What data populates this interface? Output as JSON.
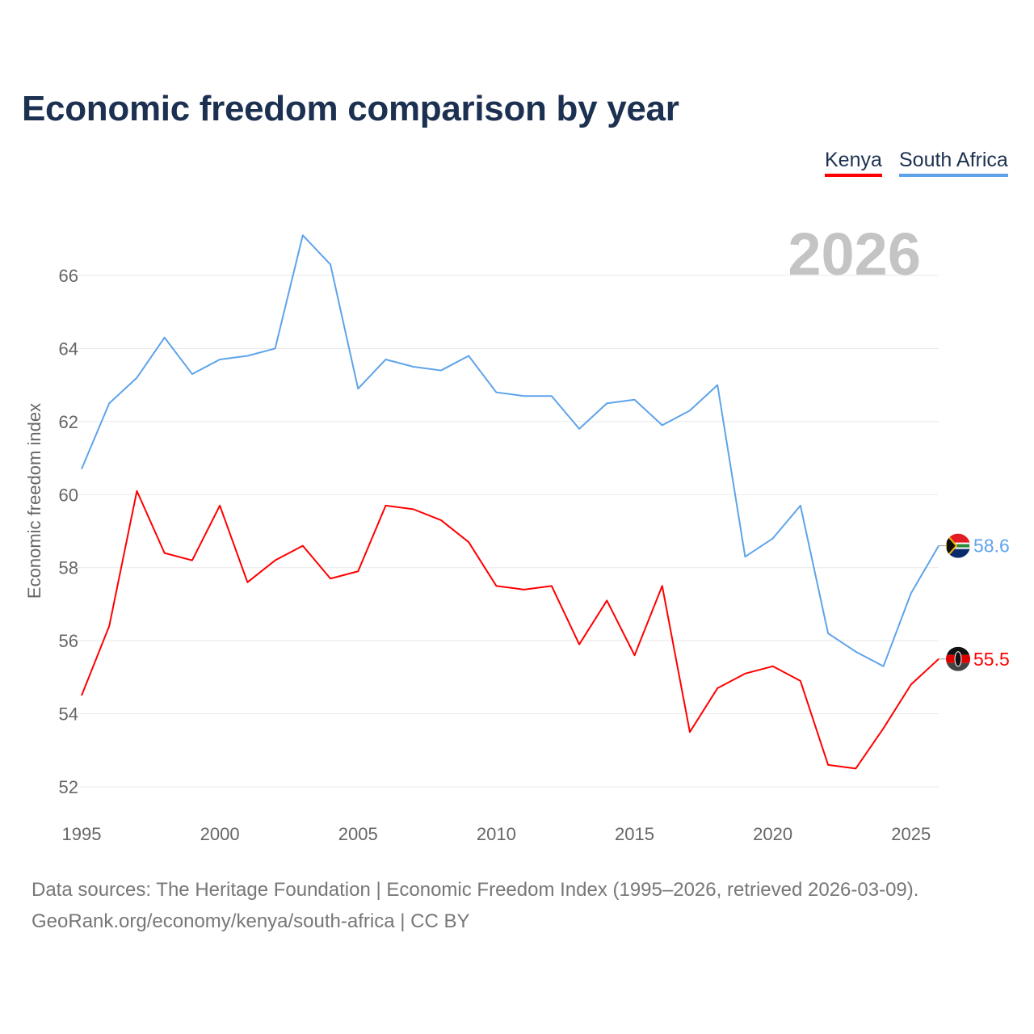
{
  "chart_data": {
    "type": "line",
    "title": "Economic freedom comparison by year",
    "xlabel": "",
    "ylabel": "Economic freedom index",
    "ylim": [
      52,
      66
    ],
    "xlim": [
      1995,
      2026
    ],
    "yticks": [
      "52",
      "54",
      "56",
      "58",
      "60",
      "62",
      "64",
      "66"
    ],
    "xticks": [
      "1995",
      "2000",
      "2005",
      "2010",
      "2015",
      "2020",
      "2025"
    ],
    "grid": true,
    "legend_position": "top-right",
    "watermark_year": "2026",
    "x": [
      1995,
      1996,
      1997,
      1998,
      1999,
      2000,
      2001,
      2002,
      2003,
      2004,
      2005,
      2006,
      2007,
      2008,
      2009,
      2010,
      2011,
      2012,
      2013,
      2014,
      2015,
      2016,
      2017,
      2018,
      2019,
      2020,
      2021,
      2022,
      2023,
      2024,
      2025,
      2026
    ],
    "series": [
      {
        "name": "Kenya",
        "color": "#ff0000",
        "end_label": "55.5",
        "values": [
          54.5,
          56.4,
          60.1,
          58.4,
          58.2,
          59.7,
          57.6,
          58.2,
          58.6,
          57.7,
          57.9,
          59.7,
          59.6,
          59.3,
          58.7,
          57.5,
          57.4,
          57.5,
          55.9,
          57.1,
          55.6,
          57.5,
          53.5,
          54.7,
          55.1,
          55.3,
          54.9,
          52.6,
          52.5,
          53.6,
          54.8,
          55.5
        ]
      },
      {
        "name": "South Africa",
        "color": "#5ea3ea",
        "end_label": "58.6",
        "values": [
          60.7,
          62.5,
          63.2,
          64.3,
          63.3,
          63.7,
          63.8,
          64.0,
          67.1,
          66.3,
          62.9,
          63.7,
          63.5,
          63.4,
          63.8,
          62.8,
          62.7,
          62.7,
          61.8,
          62.5,
          62.6,
          61.9,
          62.3,
          63.0,
          58.3,
          58.8,
          59.7,
          56.2,
          55.7,
          55.3,
          57.3,
          58.6
        ]
      }
    ]
  },
  "footer": {
    "line1": "Data sources: The Heritage Foundation | Economic Freedom Index (1995–2026, retrieved 2026-03-09).",
    "line2": "GeoRank.org/economy/kenya/south-africa | CC BY"
  }
}
